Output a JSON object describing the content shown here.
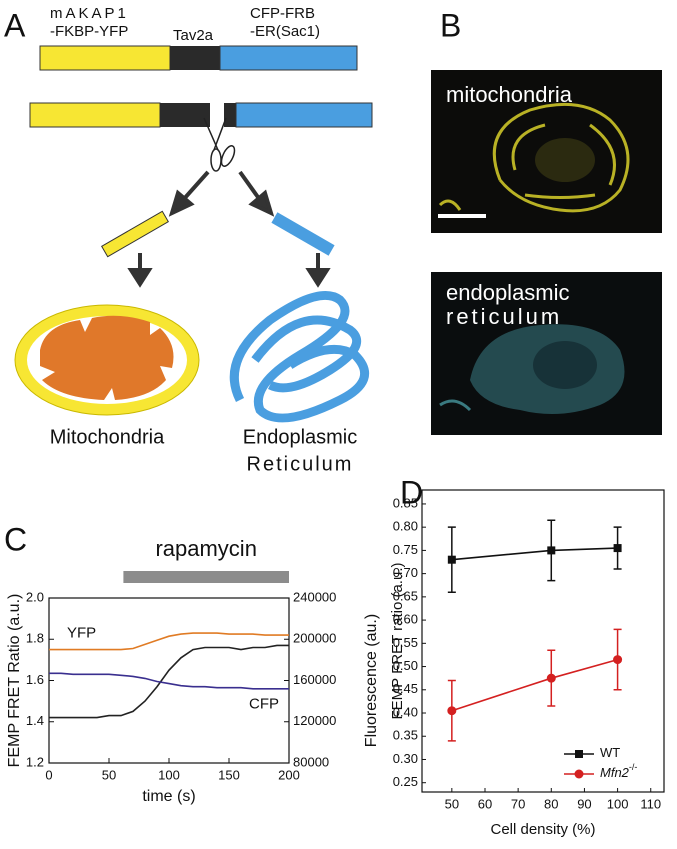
{
  "panel_a": {
    "label": "A",
    "construct_left": [
      "mAKAP1",
      "-FKBP-YFP"
    ],
    "construct_mid": "Tav2a",
    "construct_right": [
      "CFP-FRB",
      "-ER(Sac1)"
    ],
    "target_left": "Mitochondria",
    "target_right": [
      "Endoplasmic",
      "Reticulum"
    ]
  },
  "panel_b": {
    "label": "B",
    "image_top": "mitochondria",
    "image_bottom": [
      "endoplasmic",
      "reticulum"
    ]
  },
  "chart_data": [
    {
      "type": "line",
      "panel": "C",
      "annotation": {
        "text": "rapamycin",
        "x_range": [
          62,
          200
        ]
      },
      "x_label": "time (s)",
      "y_label": "FEMP FRET Ratio (a.u.)",
      "y2_label": "Fluorescence (au.)",
      "xlim": [
        0,
        200
      ],
      "xticks": [
        0,
        50,
        100,
        150,
        200
      ],
      "ylim": [
        1.2,
        2.0
      ],
      "yticks": [
        1.2,
        1.4,
        1.6,
        1.8,
        {
          "value": 2.0,
          "label": "2.0"
        }
      ],
      "y2lim": [
        80000,
        240000
      ],
      "y2ticks": [
        80000,
        120000,
        160000,
        200000,
        240000
      ],
      "x": [
        0,
        10,
        20,
        30,
        40,
        50,
        60,
        70,
        80,
        90,
        100,
        110,
        120,
        130,
        140,
        150,
        160,
        170,
        180,
        190,
        200
      ],
      "series": [
        {
          "color": "#222222",
          "values": [
            1.42,
            1.42,
            1.42,
            1.42,
            1.42,
            1.43,
            1.43,
            1.45,
            1.5,
            1.57,
            1.65,
            1.71,
            1.75,
            1.76,
            1.76,
            1.76,
            1.75,
            1.76,
            1.76,
            1.77,
            1.77
          ]
        },
        {
          "name": "YFP",
          "color": "#e07b24",
          "axis": "y2",
          "values": [
            190000,
            190000,
            190000,
            190000,
            190000,
            190000,
            190000,
            191000,
            195000,
            199000,
            203000,
            205000,
            206000,
            206000,
            206000,
            205000,
            205000,
            205000,
            204000,
            204000,
            204000
          ]
        },
        {
          "name": "CFP",
          "color": "#3a2f8f",
          "axis": "y2",
          "values": [
            167000,
            167000,
            166000,
            166000,
            166000,
            166000,
            165000,
            164000,
            162000,
            159000,
            157000,
            155000,
            154000,
            154000,
            153000,
            153000,
            153000,
            152000,
            152000,
            152000,
            152000
          ]
        }
      ]
    },
    {
      "type": "errorbar",
      "panel": "D",
      "x_label": "Cell density (%)",
      "y_label": "FEMP FRET ratio (a.u.)",
      "xlim": [
        41,
        114
      ],
      "xticks": [
        50,
        60,
        70,
        80,
        90,
        100,
        110
      ],
      "ylim": [
        0.23,
        0.88
      ],
      "yticks": [
        0.25,
        {
          "value": 0.3,
          "label": "0.30"
        },
        0.35,
        {
          "value": 0.4,
          "label": "0.40"
        },
        0.45,
        {
          "value": 0.5,
          "label": "0.50"
        },
        0.55,
        {
          "value": 0.6,
          "label": "0.60"
        },
        0.65,
        {
          "value": 0.7,
          "label": "0.70"
        },
        0.75,
        {
          "value": 0.8,
          "label": "0.80"
        },
        0.85
      ],
      "legend": "bottom-right",
      "x": [
        50,
        80,
        100
      ],
      "series": [
        {
          "name": "WT",
          "color": "#111111",
          "marker": "square",
          "values": [
            0.73,
            0.75,
            0.755
          ],
          "errors": [
            0.07,
            0.065,
            0.045
          ]
        },
        {
          "name": "Mfn2",
          "superscript": "-/-",
          "color": "#d42020",
          "marker": "circle",
          "values": [
            0.405,
            0.475,
            0.515
          ],
          "errors": [
            0.065,
            0.06,
            0.065
          ]
        }
      ]
    }
  ]
}
